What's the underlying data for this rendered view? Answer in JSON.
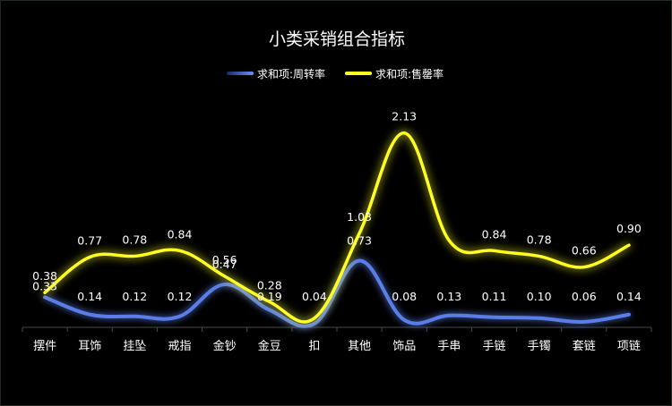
{
  "chart_data": {
    "type": "line",
    "title": "小类采销组合指标",
    "categories": [
      "摆件",
      "耳饰",
      "挂坠",
      "戒指",
      "金钞",
      "金豆",
      "扣",
      "其他",
      "饰品",
      "手串",
      "手链",
      "手镯",
      "套链",
      "项链"
    ],
    "series": [
      {
        "name": "求和项:周转率",
        "color": "#5a7de8",
        "values": [
          0.33,
          0.14,
          0.12,
          0.12,
          0.47,
          0.19,
          0.04,
          0.73,
          0.08,
          0.13,
          0.11,
          0.1,
          0.06,
          0.14
        ],
        "labels": [
          "0.33",
          "0.14",
          "0.12",
          "0.12",
          "0.47",
          "0.19",
          "0.04",
          "0.73",
          "0.08",
          "0.13",
          "0.11",
          "0.10",
          "0.06",
          "0.14"
        ]
      },
      {
        "name": "求和项:售罄率",
        "color": "#ffff22",
        "values": [
          0.38,
          0.77,
          0.78,
          0.84,
          0.56,
          0.28,
          null,
          1.03,
          2.13,
          null,
          0.84,
          0.78,
          0.66,
          0.9
        ],
        "labels": [
          "0.38",
          "0.77",
          "0.78",
          "0.84",
          "0.56",
          "0.28",
          "",
          "1.03",
          "2.13",
          "",
          "0.84",
          "0.78",
          "0.66",
          "0.90"
        ]
      }
    ],
    "ylim": [
      0,
      2.5
    ],
    "grid": false,
    "legend": "top-center"
  }
}
